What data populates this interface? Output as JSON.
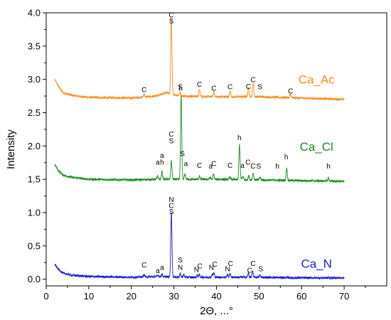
{
  "chart_data": {
    "type": "line",
    "xlabel": "2Θ, ...°",
    "ylabel": "Intensity",
    "xlim": [
      0,
      80
    ],
    "ylim": [
      -0.1,
      4.0
    ],
    "xticks": [
      0,
      10,
      20,
      30,
      40,
      50,
      60,
      70
    ],
    "yticks": [
      0.0,
      0.5,
      1.0,
      1.5,
      2.0,
      2.5,
      3.0,
      3.5,
      4.0
    ],
    "x_range": [
      2,
      70
    ],
    "grid": false,
    "legend": "inline labels at right",
    "series": [
      {
        "name": "Ca_Ac",
        "color": "#ff8c1a",
        "baseline": [
          [
            2,
            3.0
          ],
          [
            3,
            2.88
          ],
          [
            4,
            2.8
          ],
          [
            6,
            2.76
          ],
          [
            10,
            2.73
          ],
          [
            20,
            2.72
          ],
          [
            26,
            2.75
          ],
          [
            28,
            2.8
          ],
          [
            32,
            2.75
          ],
          [
            40,
            2.74
          ],
          [
            50,
            2.74
          ],
          [
            60,
            2.72
          ],
          [
            70,
            2.7
          ]
        ],
        "peaks": [
          [
            23.0,
            0.05
          ],
          [
            29.4,
            1.15
          ],
          [
            31.5,
            0.05
          ],
          [
            36.0,
            0.1
          ],
          [
            39.4,
            0.07
          ],
          [
            43.2,
            0.08
          ],
          [
            47.5,
            0.13
          ],
          [
            48.6,
            0.2
          ],
          [
            57.4,
            0.05
          ]
        ],
        "labels": [
          {
            "x": 23.0,
            "y": 2.81,
            "text": "C"
          },
          {
            "x": 29.4,
            "y": 3.93,
            "text": "C"
          },
          {
            "x": 29.4,
            "y": 3.84,
            "text": "S"
          },
          {
            "x": 31.5,
            "y": 2.85,
            "text": "S"
          },
          {
            "x": 36.0,
            "y": 2.89,
            "text": "C"
          },
          {
            "x": 39.4,
            "y": 2.83,
            "text": "C"
          },
          {
            "x": 43.2,
            "y": 2.85,
            "text": "C"
          },
          {
            "x": 47.5,
            "y": 2.86,
            "text": "C"
          },
          {
            "x": 48.6,
            "y": 2.96,
            "text": "C"
          },
          {
            "x": 50.2,
            "y": 2.85,
            "text": "S"
          },
          {
            "x": 57.4,
            "y": 2.79,
            "text": "C"
          }
        ],
        "label_pos": [
          63.5,
          2.94
        ]
      },
      {
        "name": "Ca_Cl",
        "color": "#1e8a1e",
        "baseline": [
          [
            2,
            1.72
          ],
          [
            3,
            1.62
          ],
          [
            4,
            1.56
          ],
          [
            6,
            1.53
          ],
          [
            10,
            1.5
          ],
          [
            20,
            1.49
          ],
          [
            26,
            1.5
          ],
          [
            32,
            1.5
          ],
          [
            40,
            1.5
          ],
          [
            50,
            1.49
          ],
          [
            60,
            1.48
          ],
          [
            70,
            1.47
          ]
        ],
        "peaks": [
          [
            26.2,
            0.05
          ],
          [
            27.2,
            0.12
          ],
          [
            29.4,
            0.28
          ],
          [
            31.7,
            1.25
          ],
          [
            32.6,
            0.08
          ],
          [
            36.0,
            0.04
          ],
          [
            38.5,
            0.03
          ],
          [
            39.3,
            0.07
          ],
          [
            43.2,
            0.04
          ],
          [
            45.4,
            0.53
          ],
          [
            46.2,
            0.05
          ],
          [
            47.6,
            0.06
          ],
          [
            48.6,
            0.1
          ],
          [
            50.2,
            0.04
          ],
          [
            56.5,
            0.18
          ],
          [
            66.3,
            0.05
          ]
        ],
        "labels": [
          {
            "x": 31.6,
            "y": 2.83,
            "text": "h"
          },
          {
            "x": 29.4,
            "y": 2.14,
            "text": "C"
          },
          {
            "x": 29.4,
            "y": 2.04,
            "text": "S"
          },
          {
            "x": 27.2,
            "y": 1.82,
            "text": "a"
          },
          {
            "x": 27.2,
            "y": 1.72,
            "text": "h"
          },
          {
            "x": 26.2,
            "y": 1.72,
            "text": "a"
          },
          {
            "x": 32.0,
            "y": 1.85,
            "text": "S"
          },
          {
            "x": 32.8,
            "y": 1.7,
            "text": "a"
          },
          {
            "x": 36.0,
            "y": 1.67,
            "text": "C"
          },
          {
            "x": 38.6,
            "y": 1.66,
            "text": "a"
          },
          {
            "x": 39.4,
            "y": 1.7,
            "text": "C"
          },
          {
            "x": 43.2,
            "y": 1.67,
            "text": "C"
          },
          {
            "x": 45.4,
            "y": 2.09,
            "text": "h"
          },
          {
            "x": 46.1,
            "y": 1.67,
            "text": "a"
          },
          {
            "x": 47.4,
            "y": 1.72,
            "text": "C"
          },
          {
            "x": 48.6,
            "y": 1.66,
            "text": "C"
          },
          {
            "x": 49.9,
            "y": 1.66,
            "text": "S"
          },
          {
            "x": 54.3,
            "y": 1.66,
            "text": "h"
          },
          {
            "x": 56.4,
            "y": 1.8,
            "text": "h"
          },
          {
            "x": 66.3,
            "y": 1.66,
            "text": "h"
          }
        ],
        "label_pos": [
          63.5,
          1.93
        ]
      },
      {
        "name": "Ca_N",
        "color": "#1a1ad6",
        "baseline": [
          [
            2,
            0.22
          ],
          [
            3,
            0.14
          ],
          [
            4,
            0.09
          ],
          [
            6,
            0.06
          ],
          [
            10,
            0.04
          ],
          [
            20,
            0.03
          ],
          [
            26,
            0.04
          ],
          [
            32,
            0.03
          ],
          [
            40,
            0.03
          ],
          [
            50,
            0.03
          ],
          [
            60,
            0.02
          ],
          [
            70,
            0.02
          ]
        ],
        "peaks": [
          [
            23.0,
            0.03
          ],
          [
            26.3,
            0.02
          ],
          [
            27.2,
            0.04
          ],
          [
            29.4,
            0.97
          ],
          [
            31.5,
            0.05
          ],
          [
            32.3,
            0.04
          ],
          [
            35.5,
            0.03
          ],
          [
            36.0,
            0.04
          ],
          [
            39.0,
            0.04
          ],
          [
            39.4,
            0.06
          ],
          [
            42.6,
            0.04
          ],
          [
            43.2,
            0.05
          ],
          [
            47.5,
            0.06
          ],
          [
            48.5,
            0.08
          ],
          [
            50.2,
            0.03
          ]
        ],
        "labels": [
          {
            "x": 29.4,
            "y": 1.16,
            "text": "N"
          },
          {
            "x": 29.4,
            "y": 1.07,
            "text": "C"
          },
          {
            "x": 29.4,
            "y": 0.98,
            "text": "S"
          },
          {
            "x": 23.0,
            "y": 0.18,
            "text": "C"
          },
          {
            "x": 26.2,
            "y": 0.09,
            "text": "a"
          },
          {
            "x": 27.2,
            "y": 0.14,
            "text": "a"
          },
          {
            "x": 31.5,
            "y": 0.25,
            "text": "S"
          },
          {
            "x": 31.5,
            "y": 0.14,
            "text": "N"
          },
          {
            "x": 35.3,
            "y": 0.11,
            "text": "N"
          },
          {
            "x": 36.1,
            "y": 0.16,
            "text": "C"
          },
          {
            "x": 38.8,
            "y": 0.14,
            "text": "N"
          },
          {
            "x": 39.6,
            "y": 0.19,
            "text": "C"
          },
          {
            "x": 42.6,
            "y": 0.12,
            "text": "N"
          },
          {
            "x": 43.3,
            "y": 0.2,
            "text": "C"
          },
          {
            "x": 47.8,
            "y": 0.1,
            "text": "C"
          },
          {
            "x": 48.6,
            "y": 0.2,
            "text": "C"
          },
          {
            "x": 50.4,
            "y": 0.12,
            "text": "S"
          }
        ],
        "label_pos": [
          63.5,
          0.17
        ]
      }
    ]
  }
}
